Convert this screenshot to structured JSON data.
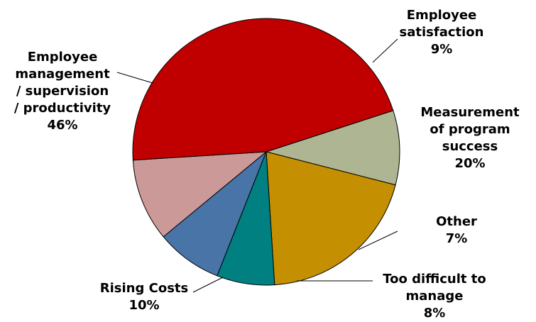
{
  "chart_data": {
    "type": "pie",
    "title": "",
    "start_angle_deg": 72,
    "direction": "clockwise",
    "slices": [
      {
        "label": [
          "Employee",
          "satisfaction"
        ],
        "pct_text": "9%",
        "value": 9,
        "color": "#adb593"
      },
      {
        "label": [
          "Measurement",
          "of program",
          "success"
        ],
        "pct_text": "20%",
        "value": 20,
        "color": "#c48f00"
      },
      {
        "label": [
          "Other"
        ],
        "pct_text": "7%",
        "value": 7,
        "color": "#008080"
      },
      {
        "label": [
          "Too difficult to",
          "manage"
        ],
        "pct_text": "8%",
        "value": 8,
        "color": "#4874a8"
      },
      {
        "label": [
          "Rising Costs"
        ],
        "pct_text": "10%",
        "value": 10,
        "color": "#cc9999"
      },
      {
        "label": [
          "Employee",
          "management",
          "/ supervision",
          "/ productivity"
        ],
        "pct_text": "46%",
        "value": 46,
        "color": "#c00000"
      }
    ]
  }
}
